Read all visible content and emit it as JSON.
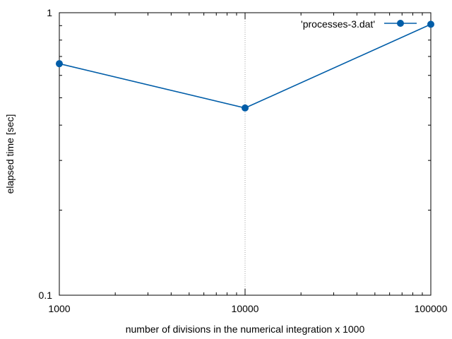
{
  "chart_data": {
    "type": "line",
    "x_scale": "log",
    "y_scale": "log",
    "xlim": [
      1000,
      100000
    ],
    "ylim": [
      0.1,
      1
    ],
    "x_tick_labels": [
      "1000",
      "10000",
      "100000"
    ],
    "y_tick_labels": [
      "0.1",
      "1"
    ],
    "xlabel": "number of divisions in the numerical integration x 1000",
    "ylabel": "elapsed time [sec]",
    "grid": "vertical dotted line at x = 10000",
    "legend_position": "top-right",
    "series": [
      {
        "name": "'processes-3.dat'",
        "color": "#005da8",
        "marker": "circle",
        "x": [
          1000,
          10000,
          100000
        ],
        "y": [
          0.66,
          0.46,
          0.91
        ]
      }
    ]
  }
}
